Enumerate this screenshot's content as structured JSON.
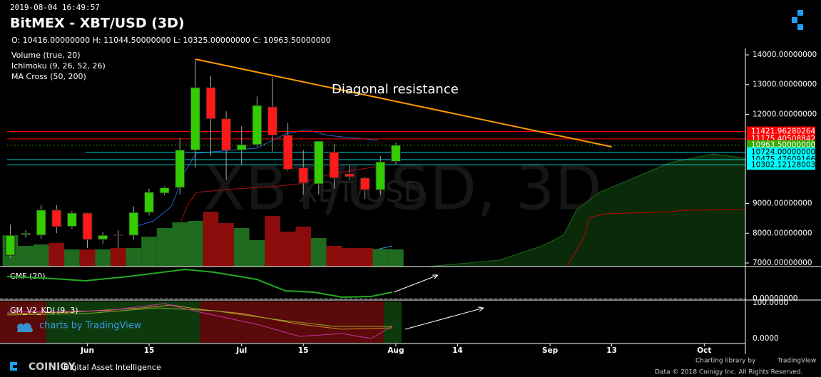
{
  "header": {
    "timestamp": "2019-08-04 16:49:57",
    "title": "BitMEX - XBT/USD (3D)",
    "ohlc": "O: 10416.00000000 H: 11044.50000000 L: 10325.00000000 C: 10963.50000000",
    "indicators": [
      "Volume (true, 20)",
      "Ichimoku (9, 26, 52, 26)",
      "MA Cross (50, 200)"
    ]
  },
  "watermark": {
    "big": "XBT/USD, 3D",
    "small": "XBT/USD"
  },
  "chart_data": {
    "type": "candlestick",
    "x": [
      "2019-05-19",
      "2019-05-22",
      "2019-05-25",
      "2019-05-28",
      "2019-05-31",
      "2019-06-03",
      "2019-06-06",
      "2019-06-09",
      "2019-06-12",
      "2019-06-15",
      "2019-06-18",
      "2019-06-21",
      "2019-06-24",
      "2019-06-27",
      "2019-06-30",
      "2019-07-03",
      "2019-07-06",
      "2019-07-09",
      "2019-07-12",
      "2019-07-15",
      "2019-07-18",
      "2019-07-21",
      "2019-07-24",
      "2019-07-27",
      "2019-07-30",
      "2019-08-02"
    ],
    "open": [
      7260,
      7950,
      7935,
      8780,
      8230,
      8680,
      7790,
      7950,
      7930,
      8700,
      9350,
      9540,
      10800,
      12900,
      11850,
      10800,
      10980,
      12250,
      11300,
      10200,
      9660,
      10730,
      10000,
      9860,
      9460,
      10416
    ],
    "high": [
      8290,
      8100,
      8950,
      8950,
      8750,
      8700,
      8050,
      8100,
      8900,
      9500,
      9580,
      11200,
      13850,
      13300,
      12100,
      11600,
      12600,
      13250,
      11700,
      10800,
      11100,
      11000,
      10300,
      9900,
      10600,
      11044.5
    ],
    "low": [
      7170,
      7850,
      7800,
      8000,
      8150,
      7500,
      7650,
      7500,
      7800,
      8600,
      9280,
      9300,
      10200,
      10600,
      9800,
      10300,
      10900,
      10750,
      10100,
      9300,
      9300,
      9500,
      9800,
      9150,
      9300,
      10325
    ],
    "close": [
      7930,
      8000,
      8780,
      8220,
      8680,
      7790,
      7930,
      7920,
      8700,
      9380,
      9530,
      10800,
      12900,
      11850,
      10800,
      10980,
      12300,
      11300,
      10150,
      9690,
      11100,
      9860,
      9900,
      9460,
      10400,
      10963.5
    ],
    "volume": [
      44,
      29,
      31,
      33,
      24,
      24,
      24,
      26,
      26,
      42,
      54,
      62,
      64,
      77,
      61,
      54,
      37,
      71,
      49,
      56,
      40,
      29,
      26,
      26,
      24,
      24
    ],
    "up_color": "#33cc00",
    "down_color": "#ff1a1a",
    "up_volume_color": "#1f6b1f",
    "down_volume_color": "#8c0c0c",
    "xlim": [
      "2019-05-17",
      "2019-10-09"
    ],
    "ylim": [
      6880,
      14216
    ],
    "xticks": [
      {
        "value": "2019-06-03",
        "label": "Jun"
      },
      {
        "value": "2019-06-15",
        "label": "15"
      },
      {
        "value": "2019-07-03",
        "label": "Jul"
      },
      {
        "value": "2019-07-15",
        "label": "15"
      },
      {
        "value": "2019-08-02",
        "label": "Aug"
      },
      {
        "value": "2019-08-14",
        "label": "14"
      },
      {
        "value": "2019-09-01",
        "label": "Sep"
      },
      {
        "value": "2019-09-13",
        "label": "13"
      },
      {
        "value": "2019-10-01",
        "label": "Oct"
      }
    ],
    "yticks": [
      {
        "value": 14000,
        "label": "14000.00000000"
      },
      {
        "value": 13000,
        "label": "13000.00000000"
      },
      {
        "value": 12000,
        "label": "12000.00000000"
      },
      {
        "value": 9000,
        "label": "9000.00000000"
      },
      {
        "value": 8000,
        "label": "8000.00000000"
      },
      {
        "value": 7000,
        "label": "7000.00000000"
      }
    ],
    "price_lines": [
      {
        "value": 11421.96280264,
        "label": "11421.96280264",
        "color": "#ff0000"
      },
      {
        "value": 11175.40508842,
        "label": "11175.40508842",
        "color": "#ff0000"
      },
      {
        "value": 10963.5,
        "label": "10963.50000000",
        "color": "#33aa00"
      },
      {
        "value": 10724,
        "label": "10724.00000000",
        "color": "#00ffff"
      },
      {
        "value": 10475.47609166,
        "label": "10475.47609166",
        "color": "#00ffff"
      },
      {
        "value": 10302.12128003,
        "label": "10302.12128003",
        "color": "#00ffff"
      }
    ],
    "trendline": {
      "x": [
        "2019-06-24",
        "2019-09-13"
      ],
      "y": [
        13856,
        10907
      ],
      "color": "#ff9900",
      "label": "Diagonal resistance"
    }
  },
  "panels": {
    "cmf": {
      "title": "CMF (20)",
      "tick": {
        "value": 0,
        "label": "0.00000000"
      }
    },
    "kdj": {
      "title": "GM_V2_KDJ (9, 3)",
      "ticks": [
        {
          "value": 100,
          "label": "100.0000"
        },
        {
          "value": 0,
          "label": "0.0000"
        }
      ]
    }
  },
  "footer": {
    "tv_badge": "charts by TradingView",
    "brand": "COINIGY",
    "tagline": "Digital Asset Intelligence",
    "charting_by": "Charting library by",
    "tradingview": "TradingView",
    "copyright": "Data © 2018 Coinigy Inc. All Rights Reserved."
  }
}
